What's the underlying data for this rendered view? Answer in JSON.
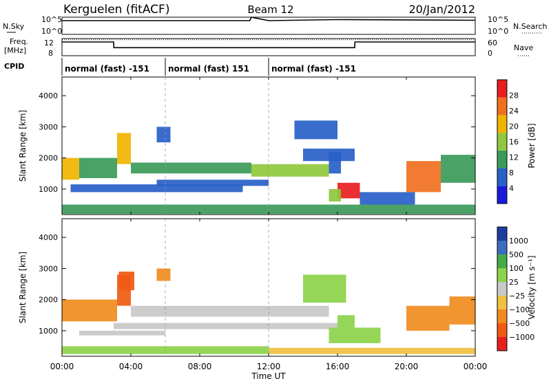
{
  "header": {
    "title": "Kerguelen (fitACF)",
    "beam": "Beam 12",
    "date": "20/Jan/2012"
  },
  "top_panels": {
    "nsky_label": "N.Sky",
    "nsky_ticks": [
      "10^5",
      "10^0"
    ],
    "nsearch_label": "N.Search",
    "nsearch_ticks": [
      "10^5",
      "10^0"
    ],
    "freq_label_1": "Freq.",
    "freq_label_2": "[MHz]",
    "freq_ticks": [
      "12",
      "8"
    ],
    "nave_label": "Nave",
    "nave_ticks": [
      "60",
      "0"
    ],
    "cpid_label": "CPID",
    "cpid_segments": [
      {
        "label": "normal (fast) -151",
        "start": "00:00",
        "end": "06:00"
      },
      {
        "label": "normal (fast) 151",
        "start": "06:00",
        "end": "12:00"
      },
      {
        "label": "normal (fast) -151",
        "start": "12:00",
        "end": "24:00"
      }
    ]
  },
  "power_panel": {
    "ylabel": "Slant Range [km]",
    "yticks": [
      "4000",
      "3000",
      "2000",
      "1000"
    ],
    "colorbar_label": "Power [dB]",
    "colorbar_ticks": [
      "28",
      "24",
      "20",
      "16",
      "12",
      "8",
      "4"
    ]
  },
  "velocity_panel": {
    "ylabel": "Slant Range [km]",
    "yticks": [
      "4000",
      "3000",
      "2000",
      "1000"
    ],
    "colorbar_label": "Velocity [m s⁻¹]",
    "colorbar_ticks": [
      "1000",
      "500",
      "100",
      "25",
      "−25",
      "−100",
      "−500",
      "−1000"
    ]
  },
  "xaxis": {
    "label": "Time UT",
    "ticks": [
      "00:00",
      "04:00",
      "08:00",
      "12:00",
      "16:00",
      "20:00",
      "00:00"
    ]
  },
  "chart_data": [
    {
      "type": "line",
      "title": "N.Sky / N.Search",
      "x": [
        0,
        6,
        10.9,
        11,
        12,
        16,
        24
      ],
      "y_nsky_log10": [
        4.0,
        4.0,
        4.0,
        5.0,
        4.0,
        4.3,
        4.1
      ],
      "xlim": [
        0,
        24
      ],
      "ylim": [
        0,
        5
      ]
    },
    {
      "type": "line",
      "title": "Freq. / Nave",
      "x": [
        0,
        3,
        3.01,
        17,
        17.01,
        24
      ],
      "freq_mhz": [
        11.6,
        11.6,
        10.1,
        10.1,
        11.6,
        11.6
      ],
      "nave": [
        56,
        56,
        56,
        56,
        56,
        56
      ],
      "xlim": [
        0,
        24
      ],
      "freq_ylim": [
        8,
        12.5
      ],
      "nave_ylim": [
        0,
        60
      ]
    },
    {
      "type": "heatmap",
      "title": "Power [dB]",
      "xlim": [
        0,
        24
      ],
      "ylim": [
        180,
        4600
      ],
      "colorscale": [
        {
          "value": 4,
          "color": "#1a1adc"
        },
        {
          "value": 8,
          "color": "#2860c8"
        },
        {
          "value": 12,
          "color": "#3c9a5a"
        },
        {
          "value": 16,
          "color": "#8fc83c"
        },
        {
          "value": 20,
          "color": "#f0b400"
        },
        {
          "value": 24,
          "color": "#f07020"
        },
        {
          "value": 28,
          "color": "#e81e1e"
        }
      ],
      "regions": [
        {
          "t0": 0.0,
          "t1": 1.0,
          "r0": 1300,
          "r1": 2000,
          "db": 22
        },
        {
          "t0": 1.0,
          "t1": 3.2,
          "r0": 1350,
          "r1": 2000,
          "db": 12
        },
        {
          "t0": 3.2,
          "t1": 4.0,
          "r0": 1800,
          "r1": 2800,
          "db": 20
        },
        {
          "t0": 4.0,
          "t1": 11.0,
          "r0": 1500,
          "r1": 1850,
          "db": 14
        },
        {
          "t0": 11.0,
          "t1": 15.5,
          "r0": 1400,
          "r1": 1800,
          "db": 18
        },
        {
          "t0": 15.5,
          "t1": 16.2,
          "r0": 1500,
          "r1": 2200,
          "db": 10
        },
        {
          "t0": 0.5,
          "t1": 10.5,
          "r0": 900,
          "r1": 1150,
          "db": 8
        },
        {
          "t0": 5.5,
          "t1": 12.0,
          "r0": 1100,
          "r1": 1300,
          "db": 10
        },
        {
          "t0": 14.0,
          "t1": 17.0,
          "r0": 1900,
          "r1": 2300,
          "db": 10
        },
        {
          "t0": 16.0,
          "t1": 17.3,
          "r0": 700,
          "r1": 1200,
          "db": 28
        },
        {
          "t0": 15.5,
          "t1": 16.2,
          "r0": 600,
          "r1": 1000,
          "db": 18
        },
        {
          "t0": 17.3,
          "t1": 20.5,
          "r0": 500,
          "r1": 900,
          "db": 10
        },
        {
          "t0": 20.0,
          "t1": 22.0,
          "r0": 900,
          "r1": 1900,
          "db": 26
        },
        {
          "t0": 22.0,
          "t1": 24.0,
          "r0": 1200,
          "r1": 2100,
          "db": 12
        },
        {
          "t0": 13.5,
          "t1": 16.0,
          "r0": 2600,
          "r1": 3200,
          "db": 8
        },
        {
          "t0": 5.5,
          "t1": 6.3,
          "r0": 2500,
          "r1": 3000,
          "db": 10
        },
        {
          "t0": 0.0,
          "t1": 24.0,
          "r0": 200,
          "r1": 500,
          "db": 12
        }
      ]
    },
    {
      "type": "heatmap",
      "title": "Velocity [m s⁻¹]",
      "xlim": [
        0,
        24
      ],
      "ylim": [
        180,
        4600
      ],
      "colorscale": [
        {
          "value": -1000,
          "color": "#e81e1e"
        },
        {
          "value": -500,
          "color": "#f05a14"
        },
        {
          "value": -100,
          "color": "#f08c1e"
        },
        {
          "value": -25,
          "color": "#f0c040"
        },
        {
          "value": 0,
          "color": "#c8c8c8"
        },
        {
          "value": 25,
          "color": "#8cd24a"
        },
        {
          "value": 100,
          "color": "#46aa46"
        },
        {
          "value": 500,
          "color": "#3c6ebe"
        },
        {
          "value": 1000,
          "color": "#1e3ca0"
        }
      ],
      "regions": [
        {
          "t0": 0.0,
          "t1": 3.2,
          "r0": 1300,
          "r1": 2000,
          "vel": -200
        },
        {
          "t0": 3.2,
          "t1": 4.0,
          "r0": 1800,
          "r1": 2800,
          "vel": -300
        },
        {
          "t0": 4.0,
          "t1": 15.5,
          "r0": 1450,
          "r1": 1800,
          "vel": 0
        },
        {
          "t0": 3.0,
          "t1": 16.0,
          "r0": 1050,
          "r1": 1250,
          "vel": 0
        },
        {
          "t0": 1.0,
          "t1": 6.0,
          "r0": 850,
          "r1": 1000,
          "vel": 0
        },
        {
          "t0": 15.5,
          "t1": 18.5,
          "r0": 600,
          "r1": 1100,
          "vel": 60
        },
        {
          "t0": 16.0,
          "t1": 17.0,
          "r0": 1100,
          "r1": 1500,
          "vel": 60
        },
        {
          "t0": 20.0,
          "t1": 22.5,
          "r0": 1000,
          "r1": 1800,
          "vel": -150
        },
        {
          "t0": 22.5,
          "t1": 24.0,
          "r0": 1200,
          "r1": 2100,
          "vel": -100
        },
        {
          "t0": 3.3,
          "t1": 4.2,
          "r0": 2300,
          "r1": 2900,
          "vel": -300
        },
        {
          "t0": 5.5,
          "t1": 6.3,
          "r0": 2600,
          "r1": 3000,
          "vel": -200
        },
        {
          "t0": 14.0,
          "t1": 16.5,
          "r0": 1900,
          "r1": 2800,
          "vel": 60
        },
        {
          "t0": 0.0,
          "t1": 12.0,
          "r0": 250,
          "r1": 500,
          "vel": 60
        },
        {
          "t0": 12.0,
          "t1": 24.0,
          "r0": 250,
          "r1": 450,
          "vel": -30
        }
      ]
    }
  ]
}
